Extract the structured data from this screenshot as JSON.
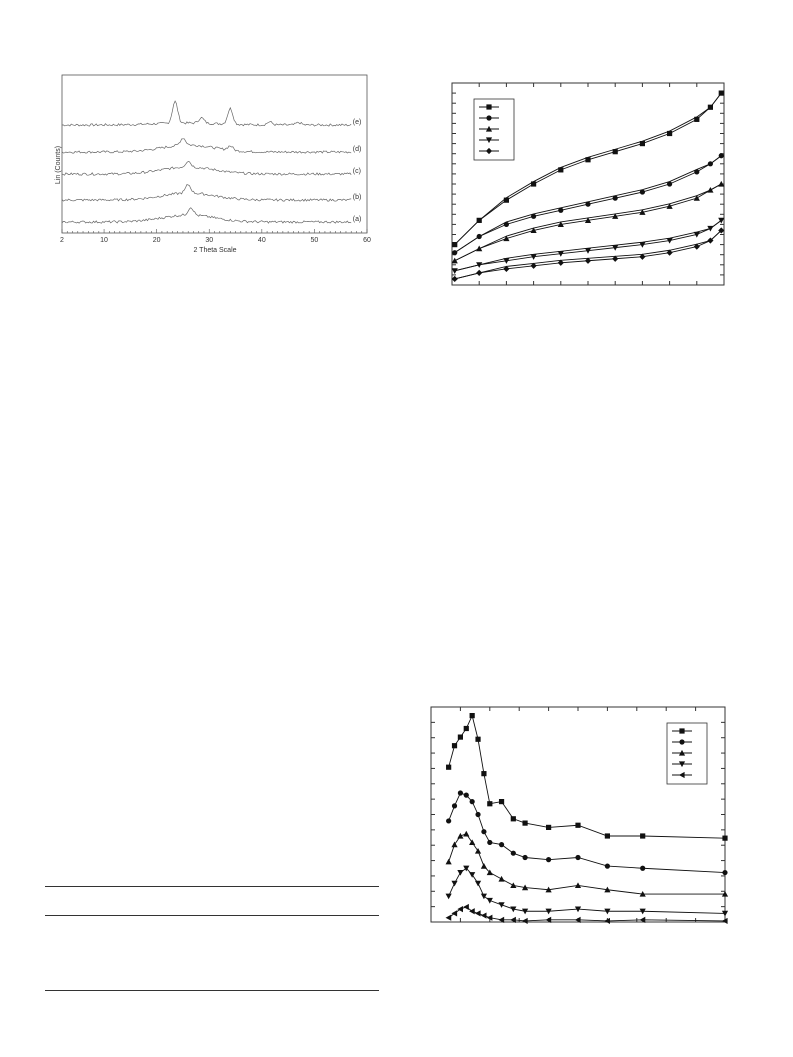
{
  "chart_data": [
    {
      "type": "line",
      "ylabel": "Lin (Counts)",
      "xlabel": "2 Theta Scale",
      "xlim": [
        2,
        60
      ],
      "x_ticks": [
        "2",
        "10",
        "20",
        "30",
        "40",
        "50",
        "60"
      ],
      "series": [
        {
          "name": "(e)",
          "profile": "crystalline",
          "peaks": [
            {
              "x": 23.5,
              "h": 3.6
            },
            {
              "x": 28.5,
              "h": 0.9
            },
            {
              "x": 34.0,
              "h": 2.6
            },
            {
              "x": 41.5,
              "h": 0.5
            },
            {
              "x": 47.0,
              "h": 0.4
            }
          ]
        },
        {
          "name": "(d)",
          "profile": "amorphous",
          "peaks": [
            {
              "x": 25.0,
              "h": 1.2
            },
            {
              "x": 34.0,
              "h": 0.7
            }
          ]
        },
        {
          "name": "(c)",
          "profile": "amorphous",
          "peaks": [
            {
              "x": 26.0,
              "h": 1.0
            }
          ]
        },
        {
          "name": "(b)",
          "profile": "amorphous",
          "peaks": [
            {
              "x": 26.0,
              "h": 1.4
            }
          ]
        },
        {
          "name": "(a)",
          "profile": "amorphous",
          "peaks": [
            {
              "x": 26.5,
              "h": 1.3
            }
          ]
        }
      ]
    },
    {
      "type": "line",
      "xlim": [
        0,
        1
      ],
      "ylim": [
        0,
        100
      ],
      "grid": false,
      "legend": "top-left",
      "series": [
        {
          "marker": "square",
          "x": [
            0.01,
            0.1,
            0.2,
            0.3,
            0.4,
            0.5,
            0.6,
            0.7,
            0.8,
            0.9,
            0.95,
            0.99
          ],
          "y": [
            20,
            32,
            42,
            50,
            57,
            62,
            66,
            70,
            75,
            82,
            88,
            95
          ]
        },
        {
          "marker": "circle",
          "x": [
            0.01,
            0.1,
            0.2,
            0.3,
            0.4,
            0.5,
            0.6,
            0.7,
            0.8,
            0.9,
            0.95,
            0.99
          ],
          "y": [
            16,
            24,
            30,
            34,
            37,
            40,
            43,
            46,
            50,
            56,
            60,
            64
          ]
        },
        {
          "marker": "triangle",
          "x": [
            0.01,
            0.1,
            0.2,
            0.3,
            0.4,
            0.5,
            0.6,
            0.7,
            0.8,
            0.9,
            0.95,
            0.99
          ],
          "y": [
            12,
            18,
            23,
            27,
            30,
            32,
            34,
            36,
            39,
            43,
            47,
            50
          ]
        },
        {
          "marker": "triangle-down",
          "x": [
            0.01,
            0.1,
            0.2,
            0.3,
            0.4,
            0.5,
            0.6,
            0.7,
            0.8,
            0.9,
            0.95,
            0.99
          ],
          "y": [
            7,
            10,
            12,
            14,
            15.5,
            17,
            18.5,
            20,
            22,
            25,
            28,
            32
          ]
        },
        {
          "marker": "diamond",
          "x": [
            0.01,
            0.1,
            0.2,
            0.3,
            0.4,
            0.5,
            0.6,
            0.7,
            0.8,
            0.9,
            0.95,
            0.99
          ],
          "y": [
            3,
            6,
            8,
            9.5,
            11,
            12,
            13,
            14,
            16,
            19,
            22,
            27
          ]
        }
      ]
    },
    {
      "type": "line",
      "xlim": [
        0,
        50
      ],
      "ylim": [
        0,
        100
      ],
      "grid": false,
      "legend": "top-right",
      "series": [
        {
          "marker": "square",
          "x": [
            3,
            4,
            5,
            6,
            7,
            8,
            9,
            10,
            12,
            14,
            16,
            20,
            25,
            30,
            36,
            50
          ],
          "y": [
            72,
            82,
            86,
            90,
            96,
            85,
            69,
            55,
            56,
            48,
            46,
            44,
            45,
            40,
            40,
            39
          ]
        },
        {
          "marker": "circle",
          "x": [
            3,
            4,
            5,
            6,
            7,
            8,
            9,
            10,
            12,
            14,
            16,
            20,
            25,
            30,
            36,
            50
          ],
          "y": [
            47,
            54,
            60,
            59,
            56,
            50,
            42,
            37,
            36,
            32,
            30,
            29,
            30,
            26,
            25,
            23
          ]
        },
        {
          "marker": "triangle",
          "x": [
            3,
            4,
            5,
            6,
            7,
            8,
            9,
            10,
            12,
            14,
            16,
            20,
            25,
            30,
            36,
            50
          ],
          "y": [
            28,
            36,
            40,
            41,
            37,
            33,
            26,
            23,
            20,
            17,
            16,
            15,
            17,
            15,
            13,
            13
          ]
        },
        {
          "marker": "triangle-down",
          "x": [
            3,
            4,
            5,
            6,
            7,
            8,
            9,
            10,
            12,
            14,
            16,
            20,
            25,
            30,
            36,
            50
          ],
          "y": [
            12,
            18,
            23,
            25,
            22,
            18,
            12,
            10,
            8,
            6,
            5,
            5,
            6,
            5,
            5,
            4
          ]
        },
        {
          "marker": "triangle-left",
          "x": [
            3,
            4,
            5,
            6,
            7,
            8,
            9,
            10,
            12,
            14,
            16,
            20,
            25,
            30,
            36,
            50
          ],
          "y": [
            2,
            4,
            6,
            7,
            5,
            4,
            3,
            2,
            1,
            1,
            0.5,
            1,
            1,
            0.5,
            1,
            0.5
          ]
        }
      ]
    }
  ]
}
